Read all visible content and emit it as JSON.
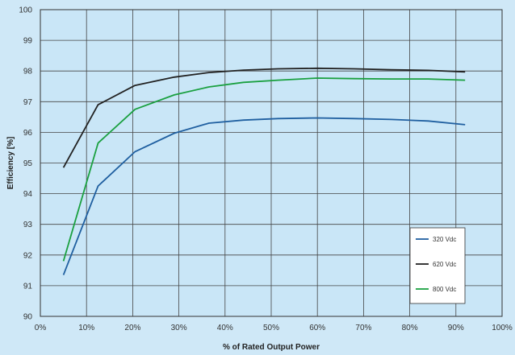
{
  "chart_data": {
    "type": "line",
    "xlabel": "% of Rated Output Power",
    "ylabel": "Efficiency [%]",
    "xlim": [
      0,
      100
    ],
    "ylim": [
      90,
      100
    ],
    "x_ticks": [
      "0%",
      "10%",
      "20%",
      "30%",
      "40%",
      "50%",
      "60%",
      "70%",
      "80%",
      "90%",
      "100%"
    ],
    "y_ticks": [
      "90",
      "91",
      "92",
      "93",
      "94",
      "95",
      "96",
      "97",
      "98",
      "99",
      "100"
    ],
    "grid": true,
    "legend_position": "bottom-right",
    "plot_background": "#c9e6f7",
    "series": [
      {
        "name": "320 Vdc",
        "color": "#1f5fa0",
        "x": [
          5,
          12.5,
          20.5,
          29,
          36.5,
          44,
          51.5,
          60,
          68,
          76,
          84,
          92
        ],
        "y": [
          91.35,
          94.25,
          95.37,
          95.97,
          96.3,
          96.4,
          96.45,
          96.47,
          96.45,
          96.42,
          96.37,
          96.25
        ]
      },
      {
        "name": "620 Vdc",
        "color": "#222222",
        "x": [
          5,
          12.5,
          20.5,
          29,
          36.5,
          44,
          51.5,
          60,
          68,
          76,
          84,
          92
        ],
        "y": [
          94.85,
          96.9,
          97.53,
          97.8,
          97.95,
          98.03,
          98.07,
          98.09,
          98.07,
          98.04,
          98.02,
          97.97
        ]
      },
      {
        "name": "800 Vdc",
        "color": "#1aa040",
        "x": [
          5,
          12.5,
          20.5,
          29,
          36.5,
          44,
          51.5,
          60,
          68,
          76,
          84,
          92
        ],
        "y": [
          91.8,
          95.65,
          96.75,
          97.22,
          97.48,
          97.63,
          97.7,
          97.77,
          97.75,
          97.74,
          97.74,
          97.7
        ]
      }
    ]
  }
}
